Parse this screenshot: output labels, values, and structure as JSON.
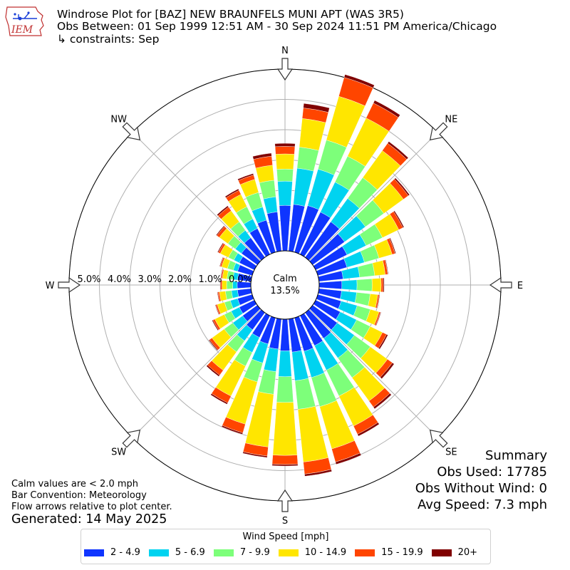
{
  "header": {
    "title": "Windrose Plot for [BAZ] NEW BRAUNFELS MUNI APT (WAS 3R5)",
    "period": "Obs Between: 01 Sep 1999 12:51 AM - 30 Sep 2024 11:51 PM America/Chicago",
    "constraints": "↳ constraints: Sep",
    "logo_text": "IEM"
  },
  "notes": {
    "calm": "Calm values are < 2.0 mph",
    "convention": "Bar Convention: Meteorology",
    "arrows": "Flow arrows relative to plot center.",
    "generated": "Generated: 14 May 2025"
  },
  "summary": {
    "heading": "Summary",
    "obs_used": "Obs Used: 17785",
    "obs_without_wind": "Obs Without Wind: 0",
    "avg_speed": "Avg Speed: 7.3 mph"
  },
  "center": {
    "label": "Calm",
    "value": "13.5%"
  },
  "colors": [
    "#0f35ff",
    "#00d3f0",
    "#7dff7a",
    "#ffe600",
    "#ff4500",
    "#800000"
  ],
  "chart_data": {
    "type": "windrose",
    "legend_title": "Wind Speed [mph]",
    "bins": [
      "2 - 4.9",
      "5 - 6.9",
      "7 - 9.9",
      "10 - 14.9",
      "15 - 19.9",
      "20+"
    ],
    "radial_ticks": [
      "0.0%",
      "1.0%",
      "2.0%",
      "3.0%",
      "4.0%",
      "5.0%"
    ],
    "rmax": 6.0,
    "directions": [
      {
        "dir": 0,
        "cum": [
          1.5,
          2.3,
          2.7,
          3.2,
          3.45,
          3.55
        ]
      },
      {
        "dir": 10,
        "cum": [
          1.55,
          2.75,
          3.45,
          4.4,
          4.75,
          4.9
        ]
      },
      {
        "dir": 20,
        "cum": [
          1.6,
          2.85,
          3.85,
          5.35,
          6.0,
          6.1
        ]
      },
      {
        "dir": 30,
        "cum": [
          1.55,
          2.65,
          3.6,
          5.0,
          5.55,
          5.65
        ]
      },
      {
        "dir": 40,
        "cum": [
          1.45,
          2.4,
          3.25,
          4.35,
          4.65,
          4.72
        ]
      },
      {
        "dir": 50,
        "cum": [
          1.3,
          2.15,
          2.9,
          3.7,
          3.9,
          3.95
        ]
      },
      {
        "dir": 60,
        "cum": [
          1.15,
          1.85,
          2.45,
          3.05,
          3.2,
          3.24
        ]
      },
      {
        "dir": 70,
        "cum": [
          1.0,
          1.6,
          2.1,
          2.55,
          2.65,
          2.68
        ]
      },
      {
        "dir": 80,
        "cum": [
          0.8,
          1.35,
          1.85,
          2.2,
          2.28,
          2.3
        ]
      },
      {
        "dir": 90,
        "cum": [
          0.75,
          1.25,
          1.75,
          2.05,
          2.12,
          2.15
        ]
      },
      {
        "dir": 100,
        "cum": [
          0.75,
          1.25,
          1.7,
          1.95,
          2.0,
          2.02
        ]
      },
      {
        "dir": 110,
        "cum": [
          0.8,
          1.35,
          1.8,
          2.1,
          2.15,
          2.17
        ]
      },
      {
        "dir": 120,
        "cum": [
          0.9,
          1.5,
          2.0,
          2.45,
          2.6,
          2.65
        ]
      },
      {
        "dir": 130,
        "cum": [
          1.0,
          1.7,
          2.35,
          3.05,
          3.25,
          3.32
        ]
      },
      {
        "dir": 140,
        "cum": [
          1.05,
          1.85,
          2.65,
          3.6,
          3.85,
          3.92
        ]
      },
      {
        "dir": 150,
        "cum": [
          1.1,
          2.0,
          2.95,
          4.05,
          4.35,
          4.42
        ]
      },
      {
        "dir": 160,
        "cum": [
          1.15,
          2.05,
          3.05,
          4.5,
          4.95,
          5.03
        ]
      },
      {
        "dir": 170,
        "cum": [
          1.1,
          2.05,
          3.0,
          4.75,
          5.15,
          5.22
        ]
      },
      {
        "dir": 180,
        "cum": [
          1.05,
          1.9,
          2.75,
          4.5,
          4.8,
          4.85
        ]
      },
      {
        "dir": 190,
        "cum": [
          1.0,
          1.75,
          2.5,
          4.25,
          4.55,
          4.6
        ]
      },
      {
        "dir": 200,
        "cum": [
          0.9,
          1.55,
          2.2,
          3.65,
          3.95,
          4.0
        ]
      },
      {
        "dir": 210,
        "cum": [
          0.8,
          1.35,
          1.85,
          2.95,
          3.2,
          3.25
        ]
      },
      {
        "dir": 220,
        "cum": [
          0.7,
          1.15,
          1.6,
          2.35,
          2.55,
          2.6
        ]
      },
      {
        "dir": 230,
        "cum": [
          0.6,
          1.0,
          1.35,
          1.85,
          1.95,
          1.98
        ]
      },
      {
        "dir": 240,
        "cum": [
          0.55,
          0.85,
          1.1,
          1.45,
          1.52,
          1.55
        ]
      },
      {
        "dir": 250,
        "cum": [
          0.5,
          0.75,
          0.95,
          1.2,
          1.25,
          1.27
        ]
      },
      {
        "dir": 260,
        "cum": [
          0.45,
          0.65,
          0.85,
          1.05,
          1.1,
          1.12
        ]
      },
      {
        "dir": 270,
        "cum": [
          0.45,
          0.6,
          0.8,
          0.95,
          1.0,
          1.02
        ]
      },
      {
        "dir": 280,
        "cum": [
          0.45,
          0.6,
          0.8,
          0.95,
          0.99,
          1.01
        ]
      },
      {
        "dir": 290,
        "cum": [
          0.5,
          0.65,
          0.85,
          1.05,
          1.1,
          1.12
        ]
      },
      {
        "dir": 300,
        "cum": [
          0.55,
          0.75,
          0.95,
          1.25,
          1.32,
          1.35
        ]
      },
      {
        "dir": 310,
        "cum": [
          0.65,
          0.9,
          1.2,
          1.55,
          1.65,
          1.68
        ]
      },
      {
        "dir": 320,
        "cum": [
          0.8,
          1.1,
          1.45,
          1.9,
          2.05,
          2.1
        ]
      },
      {
        "dir": 330,
        "cum": [
          0.95,
          1.3,
          1.75,
          2.2,
          2.35,
          2.4
        ]
      },
      {
        "dir": 340,
        "cum": [
          1.1,
          1.55,
          2.05,
          2.5,
          2.65,
          2.7
        ]
      },
      {
        "dir": 350,
        "cum": [
          1.3,
          1.8,
          2.35,
          2.85,
          3.15,
          3.25
        ]
      }
    ],
    "compass_labels": [
      {
        "label": "N",
        "deg": 0
      },
      {
        "label": "NE",
        "deg": 45
      },
      {
        "label": "E",
        "deg": 90
      },
      {
        "label": "SE",
        "deg": 135
      },
      {
        "label": "S",
        "deg": 180
      },
      {
        "label": "SW",
        "deg": 225
      },
      {
        "label": "W",
        "deg": 270
      },
      {
        "label": "NW",
        "deg": 315
      }
    ]
  }
}
